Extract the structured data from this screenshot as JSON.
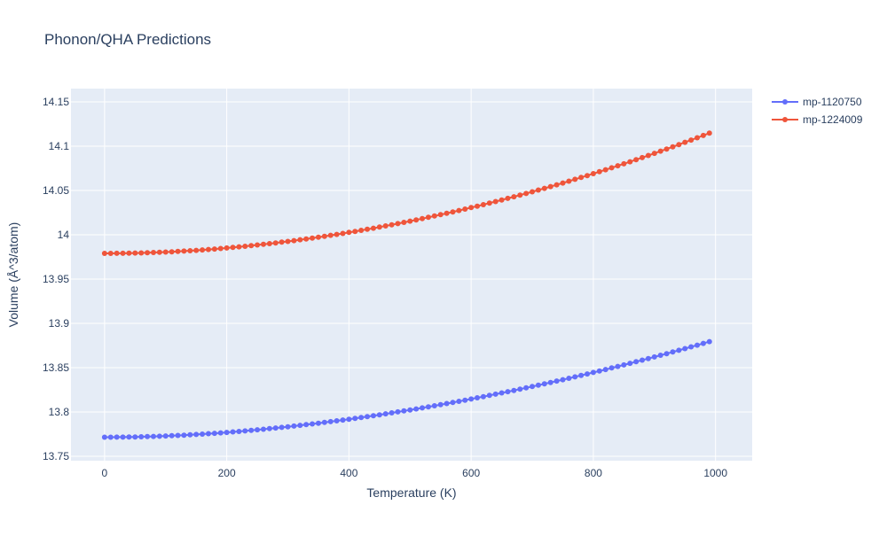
{
  "chart_data": {
    "type": "line",
    "title": "Phonon/QHA Predictions",
    "xlabel": "Temperature (K)",
    "ylabel": "Volume (Å^3/atom)",
    "xlim": [
      -55,
      1060
    ],
    "ylim": [
      13.745,
      14.165
    ],
    "xticks": [
      0,
      200,
      400,
      600,
      800,
      1000
    ],
    "xtick_labels": [
      "0",
      "200",
      "400",
      "600",
      "800",
      "1000"
    ],
    "yticks": [
      13.75,
      13.8,
      13.85,
      13.9,
      13.95,
      14.0,
      14.05,
      14.1,
      14.15
    ],
    "ytick_labels": [
      "13.75",
      "13.8",
      "13.85",
      "13.9",
      "13.95",
      "14",
      "14.05",
      "14.1",
      "14.15"
    ],
    "grid": true,
    "legend_position": "top-right",
    "background_color": "#e5ecf6",
    "x": [
      0,
      10,
      20,
      30,
      40,
      50,
      60,
      70,
      80,
      90,
      100,
      110,
      120,
      130,
      140,
      150,
      160,
      170,
      180,
      190,
      200,
      210,
      220,
      230,
      240,
      250,
      260,
      270,
      280,
      290,
      300,
      310,
      320,
      330,
      340,
      350,
      360,
      370,
      380,
      390,
      400,
      410,
      420,
      430,
      440,
      450,
      460,
      470,
      480,
      490,
      500,
      510,
      520,
      530,
      540,
      550,
      560,
      570,
      580,
      590,
      600,
      610,
      620,
      630,
      640,
      650,
      660,
      670,
      680,
      690,
      700,
      710,
      720,
      730,
      740,
      750,
      760,
      770,
      780,
      790,
      800,
      810,
      820,
      830,
      840,
      850,
      860,
      870,
      880,
      890,
      900,
      910,
      920,
      930,
      940,
      950,
      960,
      970,
      980,
      990
    ],
    "series": [
      {
        "name": "mp-1120750",
        "color": "#636efa",
        "values": [
          13.7715,
          13.7715,
          13.7716,
          13.7716,
          13.7717,
          13.7718,
          13.772,
          13.7722,
          13.7724,
          13.7726,
          13.7729,
          13.7732,
          13.7735,
          13.7738,
          13.7742,
          13.7746,
          13.775,
          13.7755,
          13.7759,
          13.7764,
          13.7769,
          13.7775,
          13.778,
          13.7786,
          13.7792,
          13.7799,
          13.7805,
          13.7812,
          13.7819,
          13.7826,
          13.7833,
          13.7841,
          13.7849,
          13.7857,
          13.7865,
          13.7873,
          13.7882,
          13.7891,
          13.79,
          13.7909,
          13.7918,
          13.7928,
          13.7938,
          13.7948,
          13.7958,
          13.7968,
          13.7979,
          13.799,
          13.8001,
          13.8012,
          13.8023,
          13.8034,
          13.8046,
          13.8058,
          13.807,
          13.8082,
          13.8095,
          13.8107,
          13.812,
          13.8133,
          13.8146,
          13.816,
          13.8173,
          13.8187,
          13.8201,
          13.8215,
          13.8229,
          13.8243,
          13.8258,
          13.8272,
          13.8287,
          13.8302,
          13.8318,
          13.8333,
          13.8349,
          13.8364,
          13.838,
          13.8396,
          13.8413,
          13.8429,
          13.8446,
          13.8462,
          13.8479,
          13.8497,
          13.8514,
          13.8531,
          13.8549,
          13.8567,
          13.8585,
          13.8603,
          13.8621,
          13.864,
          13.8658,
          13.8677,
          13.8696,
          13.8715,
          13.8735,
          13.8754,
          13.8774,
          13.8794
        ]
      },
      {
        "name": "mp-1224009",
        "color": "#ef553b",
        "values": [
          13.979,
          13.979,
          13.9791,
          13.9791,
          13.9792,
          13.9794,
          13.9795,
          13.9797,
          13.98,
          13.9802,
          13.9805,
          13.9808,
          13.9812,
          13.9816,
          13.982,
          13.9824,
          13.9829,
          13.9834,
          13.9839,
          13.9845,
          13.9851,
          13.9857,
          13.9864,
          13.987,
          13.9877,
          13.9885,
          13.9892,
          13.99,
          13.9908,
          13.9917,
          13.9925,
          13.9934,
          13.9944,
          13.9953,
          13.9963,
          13.9973,
          13.9983,
          13.9994,
          14.0004,
          14.0015,
          14.0027,
          14.0038,
          14.005,
          14.0062,
          14.0074,
          14.0087,
          14.01,
          14.0113,
          14.0126,
          14.014,
          14.0154,
          14.0168,
          14.0182,
          14.0197,
          14.0212,
          14.0227,
          14.0242,
          14.0258,
          14.0274,
          14.029,
          14.0307,
          14.0323,
          14.034,
          14.0358,
          14.0375,
          14.0393,
          14.0411,
          14.0429,
          14.0448,
          14.0466,
          14.0485,
          14.0505,
          14.0524,
          14.0544,
          14.0564,
          14.0584,
          14.0605,
          14.0626,
          14.0647,
          14.0668,
          14.069,
          14.0712,
          14.0734,
          14.0756,
          14.0779,
          14.0801,
          14.0824,
          14.0848,
          14.0871,
          14.0895,
          14.0919,
          14.0944,
          14.0968,
          14.0993,
          14.1018,
          14.1044,
          14.1069,
          14.1095,
          14.1121,
          14.1148
        ]
      }
    ]
  }
}
